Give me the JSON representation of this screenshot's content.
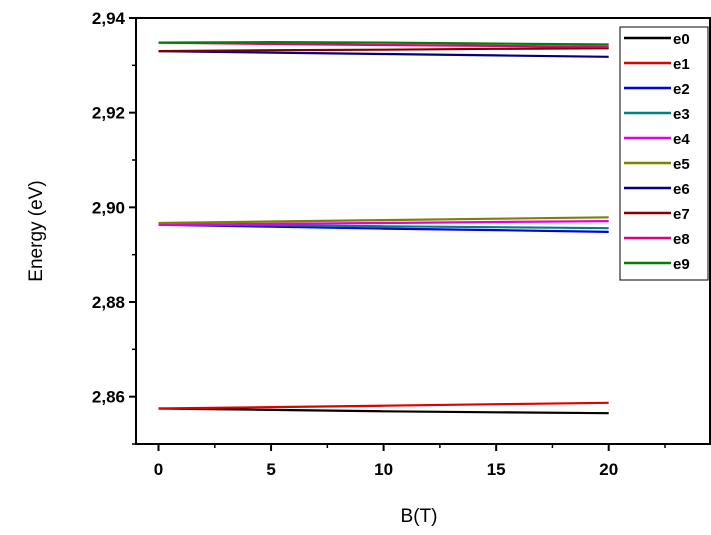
{
  "chart_data": {
    "type": "line",
    "title": "",
    "xlabel": "B(T)",
    "ylabel": "Energy (eV)",
    "xlim": [
      -1,
      24.5
    ],
    "ylim": [
      2.85,
      2.94
    ],
    "xticks": [
      0,
      5,
      10,
      15,
      20
    ],
    "xtick_labels": [
      "0",
      "5",
      "10",
      "15",
      "20"
    ],
    "yticks": [
      2.86,
      2.88,
      2.9,
      2.92,
      2.94
    ],
    "ytick_labels": [
      "2,86",
      "2,88",
      "2,90",
      "2,92",
      "2,94"
    ],
    "grid": false,
    "legend_position": "top-right",
    "x": [
      0,
      5,
      10,
      15,
      20
    ],
    "series": [
      {
        "name": "e0",
        "color": "#000000",
        "values": [
          2.8575,
          2.8572,
          2.8569,
          2.8567,
          2.8565
        ]
      },
      {
        "name": "e1",
        "color": "#e00000",
        "values": [
          2.8575,
          2.8578,
          2.8581,
          2.8584,
          2.8587
        ]
      },
      {
        "name": "e2",
        "color": "#0000e0",
        "values": [
          2.8963,
          2.8959,
          2.8955,
          2.8952,
          2.8948
        ]
      },
      {
        "name": "e3",
        "color": "#008080",
        "values": [
          2.8963,
          2.8962,
          2.896,
          2.8958,
          2.8956
        ]
      },
      {
        "name": "e4",
        "color": "#e000e0",
        "values": [
          2.8963,
          2.8965,
          2.8967,
          2.8969,
          2.8971
        ]
      },
      {
        "name": "e5",
        "color": "#808000",
        "values": [
          2.8967,
          2.897,
          2.8973,
          2.8976,
          2.8979
        ]
      },
      {
        "name": "e6",
        "color": "#000080",
        "values": [
          2.933,
          2.9327,
          2.9324,
          2.9321,
          2.9318
        ]
      },
      {
        "name": "e7",
        "color": "#800000",
        "values": [
          2.933,
          2.9332,
          2.9333,
          2.9335,
          2.9336
        ]
      },
      {
        "name": "e8",
        "color": "#e00080",
        "values": [
          2.9348,
          2.9345,
          2.9343,
          2.9341,
          2.9339
        ]
      },
      {
        "name": "e9",
        "color": "#008000",
        "values": [
          2.9348,
          2.9349,
          2.9348,
          2.9346,
          2.9344
        ]
      }
    ]
  }
}
